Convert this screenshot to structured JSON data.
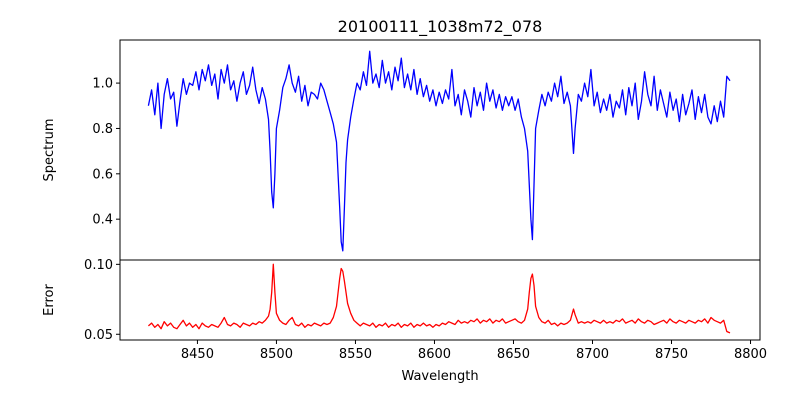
{
  "chart_data": {
    "type": "line",
    "title": "20100111_1038m72_078",
    "xlabel": "Wavelength",
    "xlim": [
      8401,
      8806
    ],
    "x_ticks": [
      8450,
      8500,
      8550,
      8600,
      8650,
      8700,
      8750,
      8800
    ],
    "panels": [
      {
        "name": "spectrum",
        "ylabel": "Spectrum",
        "ylim": [
          0.22,
          1.19
        ],
        "y_ticks": [
          "0.4",
          "0.6",
          "0.8",
          "1.0"
        ],
        "color": "#0000ff"
      },
      {
        "name": "error",
        "ylabel": "Error",
        "ylim": [
          0.0459,
          0.1031
        ],
        "y_ticks": [
          "0.05",
          "0.10"
        ],
        "color": "#ff0000"
      }
    ],
    "x": [
      8419,
      8421,
      8423,
      8425,
      8427,
      8429,
      8431,
      8433,
      8435,
      8437,
      8439,
      8441,
      8443,
      8445,
      8447,
      8449,
      8451,
      8453,
      8455,
      8457,
      8459,
      8461,
      8463,
      8465,
      8467,
      8469,
      8471,
      8473,
      8475,
      8477,
      8479,
      8481,
      8483,
      8485,
      8487,
      8489,
      8491,
      8493,
      8495,
      8496,
      8497,
      8498,
      8499,
      8500,
      8502,
      8504,
      8506,
      8508,
      8510,
      8512,
      8514,
      8516,
      8518,
      8520,
      8522,
      8524,
      8526,
      8528,
      8530,
      8532,
      8534,
      8536,
      8538,
      8540,
      8541,
      8542,
      8543,
      8544,
      8545,
      8547,
      8549,
      8551,
      8553,
      8555,
      8557,
      8559,
      8561,
      8563,
      8565,
      8567,
      8569,
      8571,
      8573,
      8575,
      8577,
      8579,
      8581,
      8583,
      8585,
      8587,
      8589,
      8591,
      8593,
      8595,
      8597,
      8599,
      8601,
      8603,
      8605,
      8607,
      8609,
      8611,
      8613,
      8615,
      8617,
      8619,
      8621,
      8623,
      8625,
      8627,
      8629,
      8631,
      8633,
      8635,
      8637,
      8639,
      8641,
      8643,
      8645,
      8647,
      8649,
      8651,
      8653,
      8655,
      8657,
      8659,
      8660,
      8661,
      8662,
      8663,
      8664,
      8666,
      8668,
      8670,
      8672,
      8674,
      8676,
      8678,
      8680,
      8682,
      8684,
      8686,
      8688,
      8689,
      8691,
      8693,
      8695,
      8697,
      8699,
      8701,
      8703,
      8705,
      8707,
      8709,
      8711,
      8713,
      8715,
      8717,
      8719,
      8721,
      8723,
      8725,
      8727,
      8729,
      8731,
      8733,
      8735,
      8737,
      8739,
      8741,
      8743,
      8745,
      8747,
      8749,
      8751,
      8753,
      8755,
      8757,
      8759,
      8761,
      8763,
      8765,
      8767,
      8769,
      8771,
      8773,
      8775,
      8777,
      8779,
      8781,
      8783,
      8785,
      8787
    ],
    "spectrum": [
      0.9,
      0.97,
      0.86,
      1.0,
      0.8,
      0.95,
      1.02,
      0.93,
      0.96,
      0.81,
      0.92,
      1.02,
      0.95,
      1.0,
      0.99,
      1.05,
      0.97,
      1.06,
      1.01,
      1.08,
      0.99,
      1.04,
      0.93,
      1.06,
      1.0,
      1.08,
      0.97,
      1.01,
      0.92,
      1.0,
      1.05,
      0.95,
      0.99,
      1.07,
      0.97,
      0.91,
      0.98,
      0.93,
      0.84,
      0.7,
      0.52,
      0.45,
      0.6,
      0.8,
      0.88,
      0.98,
      1.02,
      1.08,
      1.0,
      0.96,
      1.03,
      0.92,
      0.99,
      0.9,
      0.96,
      0.95,
      0.93,
      1.0,
      0.97,
      0.92,
      0.87,
      0.82,
      0.74,
      0.45,
      0.3,
      0.26,
      0.45,
      0.65,
      0.75,
      0.85,
      0.93,
      1.0,
      0.97,
      1.05,
      0.99,
      1.14,
      1.0,
      1.04,
      0.98,
      1.1,
      1.0,
      1.05,
      0.97,
      1.07,
      1.01,
      1.11,
      0.98,
      1.04,
      0.97,
      1.06,
      0.95,
      1.02,
      0.94,
      0.99,
      0.92,
      0.97,
      0.9,
      0.96,
      0.91,
      0.97,
      0.93,
      1.06,
      0.9,
      0.95,
      0.86,
      0.97,
      0.92,
      0.85,
      0.98,
      0.9,
      0.96,
      0.88,
      1.0,
      0.92,
      0.97,
      0.89,
      0.95,
      0.88,
      0.94,
      0.9,
      0.94,
      0.88,
      0.93,
      0.85,
      0.8,
      0.7,
      0.55,
      0.4,
      0.31,
      0.55,
      0.8,
      0.88,
      0.95,
      0.9,
      0.96,
      0.92,
      1.0,
      0.94,
      1.03,
      0.91,
      0.96,
      0.9,
      0.69,
      0.8,
      0.95,
      0.92,
      1.0,
      0.94,
      1.06,
      0.9,
      0.96,
      0.87,
      0.93,
      0.88,
      0.95,
      0.85,
      0.92,
      0.89,
      0.97,
      0.86,
      0.98,
      0.9,
      1.0,
      0.84,
      0.92,
      1.05,
      0.95,
      0.9,
      1.03,
      0.88,
      0.97,
      0.91,
      0.85,
      0.96,
      0.88,
      0.93,
      0.83,
      0.95,
      0.86,
      0.91,
      0.97,
      0.84,
      0.94,
      0.87,
      0.95,
      0.85,
      0.82,
      0.9,
      0.83,
      0.92,
      0.85,
      1.03,
      1.01
    ],
    "error": [
      0.056,
      0.058,
      0.055,
      0.057,
      0.054,
      0.059,
      0.056,
      0.058,
      0.055,
      0.054,
      0.057,
      0.06,
      0.056,
      0.058,
      0.055,
      0.057,
      0.054,
      0.058,
      0.056,
      0.055,
      0.057,
      0.056,
      0.055,
      0.058,
      0.062,
      0.057,
      0.056,
      0.058,
      0.057,
      0.055,
      0.058,
      0.057,
      0.056,
      0.058,
      0.057,
      0.059,
      0.058,
      0.06,
      0.063,
      0.068,
      0.08,
      0.1,
      0.08,
      0.065,
      0.06,
      0.058,
      0.057,
      0.06,
      0.062,
      0.057,
      0.056,
      0.058,
      0.055,
      0.057,
      0.056,
      0.058,
      0.057,
      0.056,
      0.058,
      0.057,
      0.058,
      0.062,
      0.07,
      0.09,
      0.097,
      0.095,
      0.088,
      0.08,
      0.072,
      0.065,
      0.06,
      0.058,
      0.056,
      0.058,
      0.057,
      0.056,
      0.058,
      0.055,
      0.057,
      0.056,
      0.058,
      0.055,
      0.057,
      0.056,
      0.058,
      0.055,
      0.057,
      0.056,
      0.058,
      0.055,
      0.057,
      0.056,
      0.058,
      0.056,
      0.057,
      0.055,
      0.057,
      0.056,
      0.058,
      0.057,
      0.059,
      0.058,
      0.057,
      0.06,
      0.058,
      0.059,
      0.058,
      0.06,
      0.059,
      0.061,
      0.058,
      0.06,
      0.059,
      0.061,
      0.058,
      0.06,
      0.059,
      0.061,
      0.058,
      0.059,
      0.06,
      0.061,
      0.059,
      0.058,
      0.06,
      0.068,
      0.08,
      0.09,
      0.093,
      0.085,
      0.07,
      0.062,
      0.059,
      0.058,
      0.06,
      0.057,
      0.058,
      0.056,
      0.058,
      0.057,
      0.058,
      0.06,
      0.068,
      0.064,
      0.058,
      0.059,
      0.058,
      0.059,
      0.058,
      0.06,
      0.059,
      0.058,
      0.06,
      0.058,
      0.059,
      0.058,
      0.06,
      0.059,
      0.061,
      0.058,
      0.059,
      0.06,
      0.058,
      0.061,
      0.059,
      0.058,
      0.06,
      0.059,
      0.057,
      0.058,
      0.059,
      0.06,
      0.058,
      0.061,
      0.059,
      0.058,
      0.06,
      0.059,
      0.058,
      0.06,
      0.059,
      0.058,
      0.06,
      0.059,
      0.061,
      0.058,
      0.062,
      0.06,
      0.059,
      0.058,
      0.06,
      0.052,
      0.051
    ]
  }
}
